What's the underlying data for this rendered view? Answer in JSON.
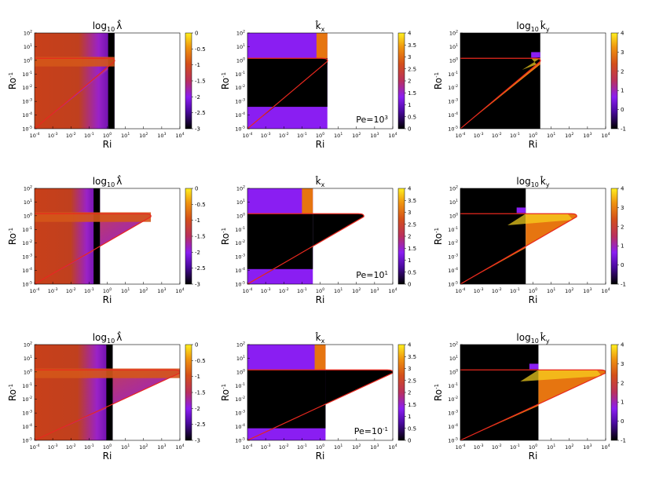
{
  "figure": {
    "row_annotations": [
      "Pe=10",
      "Pe=10",
      "Pe=10"
    ],
    "row_annotation_exponents": [
      "3",
      "1",
      "-1"
    ]
  },
  "chart_data": [
    {
      "type": "heatmap",
      "row": 0,
      "col": 0,
      "title_base": "log",
      "title_sub": "10",
      "title_sym": "λ̂",
      "xlabel": "Ri",
      "ylabel": "Ro-1",
      "xlim_log10": [
        -4,
        4
      ],
      "ylim_log10": [
        -5,
        2
      ],
      "xticks_exp": [
        "-4",
        "-3",
        "-2",
        "-1",
        "0",
        "1",
        "2",
        "3",
        "4"
      ],
      "yticks_exp": [
        "2",
        "1",
        "0",
        "-1",
        "-2",
        "-3",
        "-4",
        "-5"
      ],
      "colorbar": {
        "range": [
          -3,
          0
        ],
        "ticks": [
          "0",
          "-0.5",
          "-1",
          "-1.5",
          "-2",
          "-2.5",
          "-3"
        ]
      },
      "colormap": "gnuplot",
      "ri_max_log10": 0.4,
      "tip_log10": 0.4
    },
    {
      "type": "heatmap",
      "row": 0,
      "col": 1,
      "title_sym": "k̂",
      "title_sub": "x",
      "xlabel": "Ri",
      "ylabel": "Ro-1",
      "xlim_log10": [
        -4,
        4
      ],
      "ylim_log10": [
        -5,
        2
      ],
      "xticks_exp": [
        "-4",
        "-3",
        "-2",
        "-1",
        "0",
        "1",
        "2",
        "3",
        "4"
      ],
      "yticks_exp": [
        "2",
        "1",
        "0",
        "-1",
        "-2",
        "-3",
        "-4",
        "-5"
      ],
      "colorbar": {
        "range": [
          0,
          4
        ],
        "ticks": [
          "4",
          "3.5",
          "3",
          "2.5",
          "2",
          "1.5",
          "1",
          "0.5",
          "0"
        ]
      },
      "colormap": "gnuplot",
      "ri_max_log10": 0.4,
      "tip_log10": 0.4
    },
    {
      "type": "heatmap",
      "row": 0,
      "col": 2,
      "title_base": "log",
      "title_sub": "10",
      "title_sym": "k̂",
      "title_sub2": "y",
      "xlabel": "Ri",
      "ylabel": "Ro-1",
      "xlim_log10": [
        -4,
        4
      ],
      "ylim_log10": [
        -5,
        2
      ],
      "xticks_exp": [
        "-4",
        "-3",
        "-2",
        "-1",
        "0",
        "1",
        "2",
        "3",
        "4"
      ],
      "yticks_exp": [
        "2",
        "1",
        "0",
        "-1",
        "-2",
        "-3",
        "-4",
        "-5"
      ],
      "colorbar": {
        "range": [
          -1,
          4
        ],
        "ticks": [
          "4",
          "3",
          "2",
          "1",
          "0",
          "-1"
        ]
      },
      "colormap": "gnuplot",
      "ri_max_log10": 0.4,
      "tip_log10": 0.4
    },
    {
      "type": "heatmap",
      "row": 1,
      "col": 0,
      "title_base": "log",
      "title_sub": "10",
      "title_sym": "λ̂",
      "xlabel": "Ri",
      "ylabel": "Ro-1",
      "xlim_log10": [
        -4,
        4
      ],
      "ylim_log10": [
        -5,
        2
      ],
      "xticks_exp": [
        "-4",
        "-3",
        "-2",
        "-1",
        "0",
        "1",
        "2",
        "3",
        "4"
      ],
      "yticks_exp": [
        "2",
        "1",
        "0",
        "-1",
        "-2",
        "-3",
        "-4",
        "-5"
      ],
      "colorbar": {
        "range": [
          -3,
          0
        ],
        "ticks": [
          "0",
          "-0.5",
          "-1",
          "-1.5",
          "-2",
          "-2.5",
          "-3"
        ]
      },
      "colormap": "gnuplot",
      "ri_max_log10": -0.4,
      "tip_log10": 2.4
    },
    {
      "type": "heatmap",
      "row": 1,
      "col": 1,
      "title_sym": "k̂",
      "title_sub": "x",
      "xlabel": "Ri",
      "ylabel": "Ro-1",
      "xlim_log10": [
        -4,
        4
      ],
      "ylim_log10": [
        -5,
        2
      ],
      "xticks_exp": [
        "-4",
        "-3",
        "-2",
        "-1",
        "0",
        "1",
        "2",
        "3",
        "4"
      ],
      "yticks_exp": [
        "2",
        "1",
        "0",
        "-1",
        "-2",
        "-3",
        "-4",
        "-5"
      ],
      "colorbar": {
        "range": [
          0,
          4
        ],
        "ticks": [
          "4",
          "3.5",
          "3",
          "2.5",
          "2",
          "1.5",
          "1",
          "0.5",
          "0"
        ]
      },
      "colormap": "gnuplot",
      "ri_max_log10": -0.4,
      "tip_log10": 2.4
    },
    {
      "type": "heatmap",
      "row": 1,
      "col": 2,
      "title_base": "log",
      "title_sub": "10",
      "title_sym": "k̂",
      "title_sub2": "y",
      "xlabel": "Ri",
      "ylabel": "Ro-1",
      "xlim_log10": [
        -4,
        4
      ],
      "ylim_log10": [
        -5,
        2
      ],
      "xticks_exp": [
        "-4",
        "-3",
        "-2",
        "-1",
        "0",
        "1",
        "2",
        "3",
        "4"
      ],
      "yticks_exp": [
        "2",
        "1",
        "0",
        "-1",
        "-2",
        "-3",
        "-4",
        "-5"
      ],
      "colorbar": {
        "range": [
          -1,
          4
        ],
        "ticks": [
          "4",
          "3",
          "2",
          "1",
          "0",
          "-1"
        ]
      },
      "colormap": "gnuplot",
      "ri_max_log10": -0.4,
      "tip_log10": 2.4
    },
    {
      "type": "heatmap",
      "row": 2,
      "col": 0,
      "title_base": "log",
      "title_sub": "10",
      "title_sym": "λ̂",
      "xlabel": "Ri",
      "ylabel": "Ro-1",
      "xlim_log10": [
        -4,
        4
      ],
      "ylim_log10": [
        -5,
        2
      ],
      "xticks_exp": [
        "-4",
        "-3",
        "-2",
        "-1",
        "0",
        "1",
        "2",
        "3",
        "4"
      ],
      "yticks_exp": [
        "2",
        "1",
        "0",
        "-1",
        "-2",
        "-3",
        "-4",
        "-5"
      ],
      "colorbar": {
        "range": [
          -3,
          0
        ],
        "ticks": [
          "0",
          "-0.5",
          "-1",
          "-1.5",
          "-2",
          "-2.5",
          "-3"
        ]
      },
      "colormap": "gnuplot",
      "ri_max_log10": 0.3,
      "tip_log10": 4
    },
    {
      "type": "heatmap",
      "row": 2,
      "col": 1,
      "title_sym": "k̂",
      "title_sub": "x",
      "xlabel": "Ri",
      "ylabel": "Ro-1",
      "xlim_log10": [
        -4,
        4
      ],
      "ylim_log10": [
        -5,
        2
      ],
      "xticks_exp": [
        "-4",
        "-3",
        "-2",
        "-1",
        "0",
        "1",
        "2",
        "3",
        "4"
      ],
      "yticks_exp": [
        "2",
        "1",
        "0",
        "-1",
        "-2",
        "-3",
        "-4",
        "-5"
      ],
      "colorbar": {
        "range": [
          0,
          4
        ],
        "ticks": [
          "4",
          "3.5",
          "3",
          "2.5",
          "2",
          "1.5",
          "1",
          "0.5",
          "0"
        ]
      },
      "colormap": "gnuplot",
      "ri_max_log10": 0.3,
      "tip_log10": 4
    },
    {
      "type": "heatmap",
      "row": 2,
      "col": 2,
      "title_base": "log",
      "title_sub": "10",
      "title_sym": "k̂",
      "title_sub2": "y",
      "xlabel": "Ri",
      "ylabel": "Ro-1",
      "xlim_log10": [
        -4,
        4
      ],
      "ylim_log10": [
        -5,
        2
      ],
      "xticks_exp": [
        "-4",
        "-3",
        "-2",
        "-1",
        "0",
        "1",
        "2",
        "3",
        "4"
      ],
      "yticks_exp": [
        "2",
        "1",
        "0",
        "-1",
        "-2",
        "-3",
        "-4",
        "-5"
      ],
      "colorbar": {
        "range": [
          -1,
          4
        ],
        "ticks": [
          "4",
          "3",
          "2",
          "1",
          "0",
          "-1"
        ]
      },
      "colormap": "gnuplot",
      "ri_max_log10": 0.3,
      "tip_log10": 4
    }
  ],
  "colors": {
    "boundary": "#e8281e",
    "black": "#000000",
    "deep_red": "#c8401a",
    "violet": "#8a1ef2",
    "orange": "#e67510",
    "yellow": "#f8d420"
  }
}
